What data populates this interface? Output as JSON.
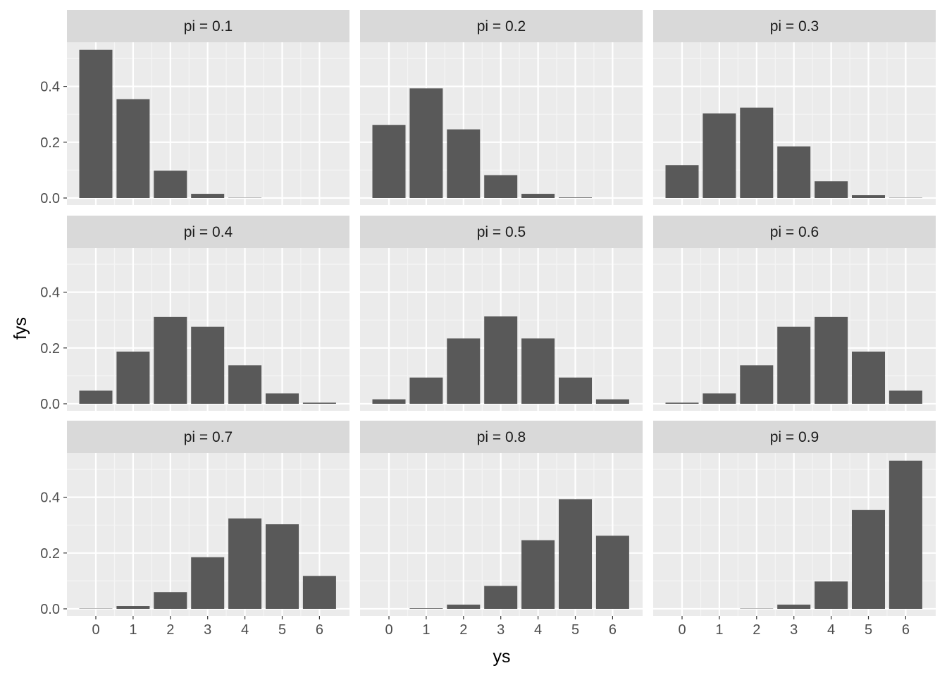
{
  "chart_data": {
    "type": "bar",
    "layout": "facet grid 3x3",
    "xlabel": "ys",
    "ylabel": "fys",
    "x_ticks": [
      "0",
      "1",
      "2",
      "3",
      "4",
      "5",
      "6"
    ],
    "y_ticks": [
      "0.0",
      "0.2",
      "0.4"
    ],
    "ylim": [
      0,
      0.55
    ],
    "grid": true,
    "colors": {
      "bar": "#595959",
      "panel_bg": "#ebebeb",
      "strip_bg": "#d9d9d9",
      "grid_major": "#ffffff",
      "grid_minor": "#f5f5f5"
    },
    "facets": [
      {
        "label": "pi = 0.1",
        "values": [
          0.531,
          0.354,
          0.098,
          0.015,
          0.001,
          0.0,
          0.0
        ]
      },
      {
        "label": "pi = 0.2",
        "values": [
          0.262,
          0.393,
          0.246,
          0.082,
          0.015,
          0.002,
          0.0
        ]
      },
      {
        "label": "pi = 0.3",
        "values": [
          0.118,
          0.303,
          0.324,
          0.185,
          0.06,
          0.01,
          0.001
        ]
      },
      {
        "label": "pi = 0.4",
        "values": [
          0.047,
          0.187,
          0.311,
          0.276,
          0.138,
          0.037,
          0.004
        ]
      },
      {
        "label": "pi = 0.5",
        "values": [
          0.016,
          0.094,
          0.234,
          0.313,
          0.234,
          0.094,
          0.016
        ]
      },
      {
        "label": "pi = 0.6",
        "values": [
          0.004,
          0.037,
          0.138,
          0.276,
          0.311,
          0.187,
          0.047
        ]
      },
      {
        "label": "pi = 0.7",
        "values": [
          0.001,
          0.01,
          0.06,
          0.185,
          0.324,
          0.303,
          0.118
        ]
      },
      {
        "label": "pi = 0.8",
        "values": [
          0.0,
          0.002,
          0.015,
          0.082,
          0.246,
          0.393,
          0.262
        ]
      },
      {
        "label": "pi = 0.9",
        "values": [
          0.0,
          0.0,
          0.001,
          0.015,
          0.098,
          0.354,
          0.531
        ]
      }
    ]
  }
}
